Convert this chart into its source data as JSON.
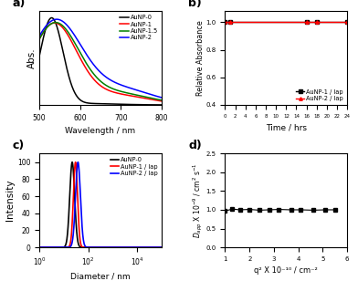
{
  "panel_a": {
    "xlabel": "Wavelength / nm",
    "ylabel": "Abs.",
    "xlim": [
      500,
      800
    ],
    "xticks": [
      500,
      600,
      700,
      800
    ],
    "legend": [
      "AuNP-0",
      "AuNP-1",
      "AuNP-1.5",
      "AuNP-2"
    ],
    "colors": [
      "black",
      "red",
      "green",
      "blue"
    ]
  },
  "panel_b": {
    "xlabel": "Time / hrs",
    "ylabel": "Relative Absorbance",
    "xlim": [
      0,
      24
    ],
    "ylim": [
      0.4,
      1.08
    ],
    "yticks": [
      0.4,
      0.6,
      0.8,
      1.0
    ],
    "xticks": [
      0,
      2,
      4,
      6,
      8,
      10,
      12,
      14,
      16,
      18,
      20,
      22,
      24
    ],
    "xticklabels": [
      "0",
      "2",
      "4",
      "6",
      "8",
      "10",
      "12",
      "14",
      "16",
      "18",
      "20",
      "22",
      "24"
    ],
    "legend": [
      "AuNP-1 / lap",
      "AuNP-2 / lap"
    ],
    "colors": [
      "black",
      "red"
    ],
    "AuNP1_t": [
      0,
      1,
      16,
      18,
      24
    ],
    "AuNP1_y": [
      1.0,
      1.0,
      1.0,
      1.0,
      1.0
    ],
    "AuNP2_t": [
      0,
      1,
      16,
      18,
      24
    ],
    "AuNP2_y": [
      1.0,
      1.0,
      1.0,
      1.0,
      1.0
    ]
  },
  "panel_c": {
    "xlabel": "Diameter / nm",
    "ylabel": "Intensity",
    "xlim": [
      1,
      100000
    ],
    "ylim": [
      0,
      110
    ],
    "yticks": [
      0,
      20,
      40,
      60,
      80,
      100
    ],
    "legend": [
      "AuNP-0",
      "AuNP-1 / lap",
      "AuNP-2 / lap"
    ],
    "colors": [
      "black",
      "red",
      "blue"
    ],
    "peak_centers": [
      22,
      30,
      38
    ],
    "peak_sigmas": [
      0.1,
      0.085,
      0.1
    ]
  },
  "panel_d": {
    "xlabel": "q² X 10⁻¹⁰ / cm⁻²",
    "ylabel": "Dₐₐₐ X 10⁻⁹ / cm² s⁻¹",
    "xlim": [
      1,
      6
    ],
    "ylim": [
      0.0,
      2.5
    ],
    "yticks": [
      0.0,
      0.5,
      1.0,
      1.5,
      2.0,
      2.5
    ],
    "xticks": [
      1,
      2,
      3,
      4,
      5,
      6
    ],
    "data_x": [
      1.0,
      1.3,
      1.6,
      2.0,
      2.4,
      2.8,
      3.2,
      3.7,
      4.1,
      4.6,
      5.1,
      5.5
    ],
    "data_y": [
      0.97,
      1.02,
      1.0,
      1.01,
      0.99,
      1.0,
      1.01,
      1.0,
      1.0,
      0.99,
      1.0,
      1.0
    ],
    "color": "black"
  },
  "bg": "white"
}
